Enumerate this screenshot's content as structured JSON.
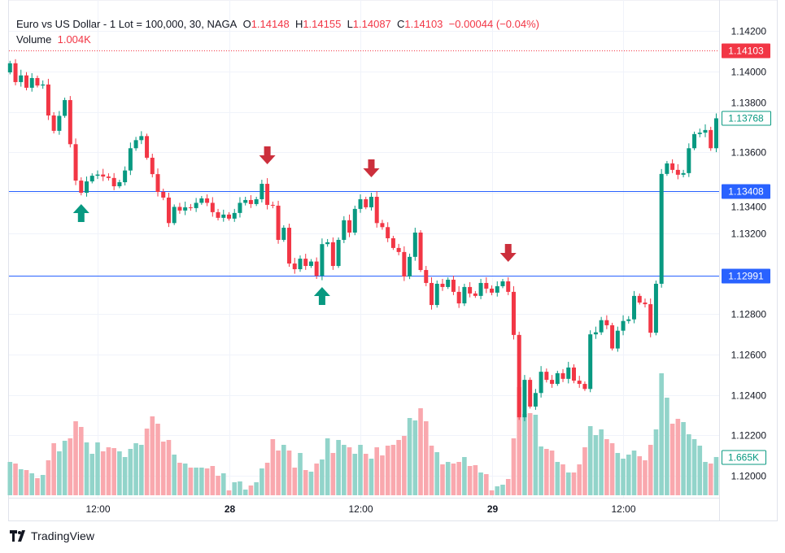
{
  "legend": {
    "symbol": "Euro vs US Dollar - 1 Lot = 100,000, 30, NAGA",
    "o_label": "O",
    "o": "1.14148",
    "h_label": "H",
    "h": "1.14155",
    "l_label": "L",
    "l": "1.14087",
    "c_label": "C",
    "c": "1.14103",
    "change": "−0.00044 (−0.04%)",
    "volume_label": "Volume",
    "volume": "1.004K"
  },
  "branding": {
    "name": "TradingView"
  },
  "colors": {
    "up": "#089981",
    "down": "#f23645",
    "up_volume": "#92d4ca",
    "down_volume": "#f9a8ae",
    "level_line": "#2962ff",
    "signal_up": "#089981",
    "signal_down": "#cc2f3c"
  },
  "chart_data": {
    "type": "candlestick",
    "timeframe": "30",
    "price_axis": {
      "ticks": [
        "1.14200",
        "1.14000",
        "1.13800",
        "1.13600",
        "1.13400",
        "1.13200",
        "1.12800",
        "1.12600",
        "1.12400",
        "1.12200",
        "1.12000"
      ],
      "range": [
        1.1194,
        1.1428
      ]
    },
    "time_axis": {
      "ticks": [
        {
          "index": 16,
          "label": "12:00"
        },
        {
          "index": 40,
          "label": "28"
        },
        {
          "index": 64,
          "label": "12:00"
        },
        {
          "index": 88,
          "label": "29"
        },
        {
          "index": 112,
          "label": "12:00"
        }
      ]
    },
    "grid": true,
    "first_open": 1.13995,
    "close": [
      1.1404,
      1.13947,
      1.1398,
      1.13919,
      1.13967,
      1.1393,
      1.13935,
      1.13782,
      1.13706,
      1.1378,
      1.13858,
      1.1364,
      1.1346,
      1.134,
      1.13456,
      1.13484,
      1.1349,
      1.1348,
      1.13473,
      1.13432,
      1.13452,
      1.1351,
      1.1362,
      1.1366,
      1.1368,
      1.13573,
      1.13492,
      1.13404,
      1.13376,
      1.1325,
      1.1333,
      1.13312,
      1.13328,
      1.13324,
      1.1335,
      1.13372,
      1.1335,
      1.13304,
      1.13276,
      1.13292,
      1.13272,
      1.133,
      1.1335,
      1.13364,
      1.13344,
      1.13368,
      1.13444,
      1.1334,
      1.13336,
      1.13167,
      1.13227,
      1.1305,
      1.13022,
      1.13074,
      1.13038,
      1.1306,
      1.1299,
      1.13146,
      1.13155,
      1.13038,
      1.13167,
      1.13264,
      1.13203,
      1.1332,
      1.13368,
      1.13328,
      1.1338,
      1.1325,
      1.1323,
      1.13175,
      1.13127,
      1.13107,
      1.12986,
      1.13083,
      1.13203,
      1.13018,
      1.12954,
      1.12845,
      1.1295,
      1.12934,
      1.1297,
      1.1291,
      1.12853,
      1.12934,
      1.12902,
      1.1289,
      1.12954,
      1.12926,
      1.12906,
      1.12938,
      1.12962,
      1.1291,
      1.12697,
      1.1229,
      1.12475,
      1.12343,
      1.1241,
      1.12515,
      1.12475,
      1.12455,
      1.12508,
      1.1248,
      1.12536,
      1.12471,
      1.12455,
      1.1243,
      1.127,
      1.1271,
      1.1277,
      1.12745,
      1.1263,
      1.12718,
      1.12766,
      1.12774,
      1.1289,
      1.12857,
      1.12849,
      1.12708,
      1.1295,
      1.13493,
      1.13545,
      1.13513,
      1.13489,
      1.13497,
      1.1362,
      1.1369,
      1.13697,
      1.1371,
      1.1362,
      1.13768
    ],
    "volume": [
      1451,
      1381,
      1133,
      1097,
      956,
      743,
      885,
      1522,
      2266,
      1912,
      2372,
      2478,
      3221,
      2974,
      2301,
      1805,
      2301,
      1912,
      2089,
      2053,
      1912,
      1664,
      2018,
      2266,
      2195,
      2903,
      3434,
      3115,
      2336,
      2407,
      1770,
      1416,
      1381,
      1204,
      1204,
      1204,
      1168,
      1274,
      850,
      956,
      212,
      566,
      602,
      248,
      425,
      566,
      1168,
      1416,
      2443,
      1947,
      2195,
      1947,
      1204,
      1841,
      1097,
      1027,
      1381,
      1558,
      2478,
      1841,
      2407,
      2195,
      2089,
      1805,
      2195,
      1805,
      1593,
      2089,
      1735,
      2159,
      2195,
      2407,
      2584,
      3363,
      3257,
      3788,
      3221,
      2159,
      1876,
      1345,
      1451,
      1381,
      1451,
      1664,
      1274,
      1310,
      991,
      920,
      212,
      389,
      460,
      708,
      2478,
      4708,
      3540,
      3575,
      3505,
      2124,
      2018,
      1947,
      1451,
      1345,
      991,
      991,
      1345,
      2089,
      3009,
      2620,
      2867,
      2443,
      2266,
      1841,
      1593,
      1770,
      1947,
      1699,
      1522,
      2195,
      2867,
      5310,
      4248,
      3115,
      3328,
      3186,
      2655,
      2443,
      2159,
      1451,
      1381,
      1665
    ],
    "level_lines": [
      {
        "price": 1.13408,
        "label": "1.13408"
      },
      {
        "price": 1.12991,
        "label": "1.12991"
      }
    ],
    "last_price": {
      "price": 1.14103,
      "label": "1.14103"
    },
    "last_bar_close": {
      "price": 1.13768,
      "label": "1.13768"
    },
    "last_volume": {
      "value": 1665,
      "label": "1.665K"
    },
    "signals": [
      {
        "index": 13,
        "direction": "up"
      },
      {
        "index": 47,
        "direction": "down"
      },
      {
        "index": 57,
        "direction": "up"
      },
      {
        "index": 66,
        "direction": "down"
      },
      {
        "index": 91,
        "direction": "down"
      }
    ]
  }
}
